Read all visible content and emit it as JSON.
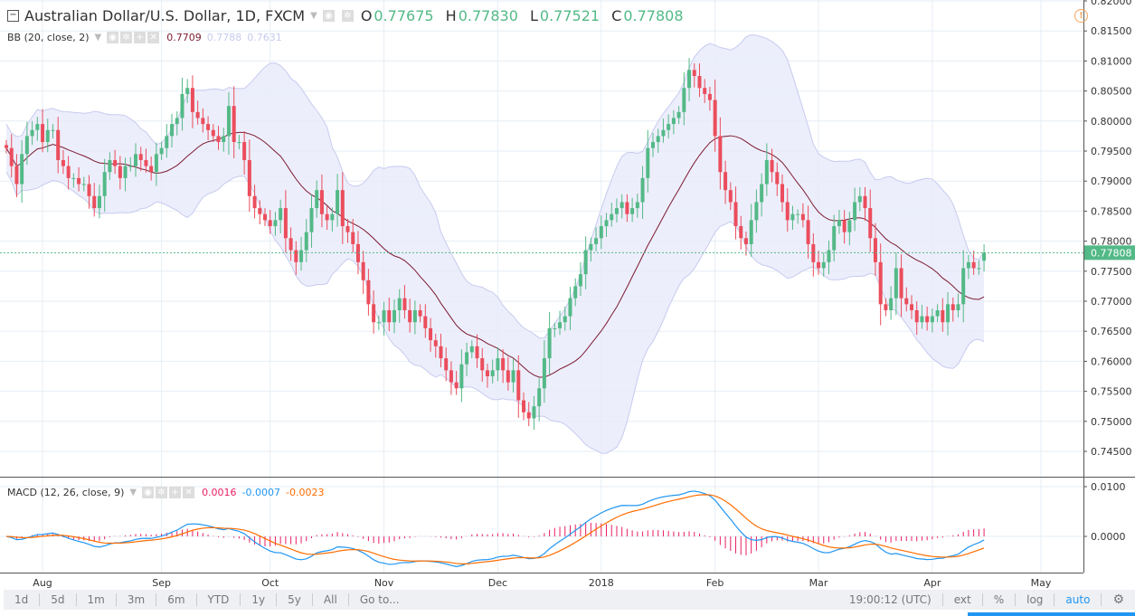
{
  "header": {
    "symbol": "Australian Dollar/U.S. Dollar, 1D, FXCM",
    "o_label": "O",
    "o": "0.77675",
    "h_label": "H",
    "h": "0.77830",
    "l_label": "L",
    "l": "0.77521",
    "c_label": "C",
    "c": "0.77808"
  },
  "bb": {
    "label": "BB (20, close, 2)",
    "basis": "0.7709",
    "upper": "0.7788",
    "lower": "0.7631"
  },
  "macd": {
    "label": "MACD (12, 26, close, 9)",
    "hist": "0.0016",
    "macd": "-0.0007",
    "signal": "-0.0023"
  },
  "toolbar": {
    "ranges": [
      "1d",
      "5d",
      "1m",
      "3m",
      "6m",
      "YTD",
      "1y",
      "5y",
      "All",
      "Go to..."
    ],
    "time": "19:00:12 (UTC)",
    "ext": "ext",
    "percent": "%",
    "log": "log",
    "auto": "auto"
  },
  "colors": {
    "up": "#53b987",
    "down": "#eb4d5c",
    "bb_fill": "#e8eafa",
    "bb_band": "#c6cbef",
    "basis": "#7b1b30",
    "macd": "#2196f3",
    "signal": "#ff6d00",
    "hist": "#e91e63",
    "last": "#53b987",
    "warning": "#f7a35c"
  },
  "chart_data": {
    "type": "candlestick",
    "x_range": [
      "2017-07-21",
      "2018-04-16"
    ],
    "x_ticks": [
      "Aug",
      "Sep",
      "Oct",
      "Nov",
      "Dec",
      "2018",
      "Feb",
      "Mar",
      "Apr",
      "May"
    ],
    "y_ticks": [
      "0.82000",
      "0.81500",
      "0.81000",
      "0.80500",
      "0.80000",
      "0.79500",
      "0.79000",
      "0.78500",
      "0.78000",
      "0.77500",
      "0.77000",
      "0.76500",
      "0.76000",
      "0.75500",
      "0.75000",
      "0.74500"
    ],
    "ylim": [
      0.7425,
      0.82
    ],
    "last_price": "0.77808",
    "macd_ticks": [
      "0.0100",
      "0.0000"
    ],
    "macd_ylim": [
      -0.008,
      0.011
    ],
    "closes": [
      0.7955,
      0.7925,
      0.7895,
      0.7945,
      0.7975,
      0.7985,
      0.7995,
      0.7965,
      0.7985,
      0.7985,
      0.7935,
      0.7925,
      0.7905,
      0.7905,
      0.7895,
      0.7895,
      0.7875,
      0.7855,
      0.7875,
      0.7915,
      0.7935,
      0.7925,
      0.7905,
      0.7925,
      0.7925,
      0.7945,
      0.7935,
      0.7925,
      0.7915,
      0.7945,
      0.7955,
      0.7975,
      0.7995,
      0.8005,
      0.8045,
      0.8055,
      0.8015,
      0.8005,
      0.7995,
      0.7985,
      0.7975,
      0.7965,
      0.7975,
      0.8025,
      0.7965,
      0.7965,
      0.7935,
      0.7875,
      0.7855,
      0.7845,
      0.7835,
      0.7825,
      0.7835,
      0.7855,
      0.7805,
      0.7785,
      0.7765,
      0.7785,
      0.7815,
      0.7855,
      0.7885,
      0.7845,
      0.7835,
      0.7845,
      0.7885,
      0.7825,
      0.7815,
      0.7795,
      0.7765,
      0.7735,
      0.7695,
      0.7665,
      0.7665,
      0.7685,
      0.7665,
      0.7685,
      0.7705,
      0.7685,
      0.7665,
      0.7685,
      0.7675,
      0.7655,
      0.7635,
      0.7625,
      0.7605,
      0.7585,
      0.7565,
      0.7555,
      0.7595,
      0.7615,
      0.7625,
      0.7605,
      0.7585,
      0.7575,
      0.7585,
      0.7605,
      0.7585,
      0.7565,
      0.7585,
      0.7535,
      0.7515,
      0.7505,
      0.7525,
      0.7555,
      0.7605,
      0.7655,
      0.7655,
      0.7665,
      0.7675,
      0.7705,
      0.7725,
      0.7745,
      0.7785,
      0.7795,
      0.7805,
      0.7825,
      0.7835,
      0.7845,
      0.7855,
      0.7865,
      0.7845,
      0.7855,
      0.7865,
      0.7905,
      0.7955,
      0.7965,
      0.7975,
      0.7985,
      0.7995,
      0.8005,
      0.8015,
      0.8055,
      0.8085,
      0.8075,
      0.8055,
      0.8045,
      0.8035,
      0.7975,
      0.7915,
      0.7885,
      0.7865,
      0.7825,
      0.7805,
      0.7795,
      0.7835,
      0.7865,
      0.7895,
      0.7935,
      0.7915,
      0.7895,
      0.7865,
      0.7835,
      0.7845,
      0.7845,
      0.7835,
      0.7795,
      0.7765,
      0.7755,
      0.7765,
      0.7785,
      0.7825,
      0.7835,
      0.7815,
      0.7835,
      0.7865,
      0.7875,
      0.7855,
      0.7805,
      0.7765,
      0.7695,
      0.7685,
      0.7705,
      0.7755,
      0.7705,
      0.7695,
      0.7685,
      0.7665,
      0.7675,
      0.7665,
      0.7675,
      0.7685,
      0.7665,
      0.7695,
      0.7685,
      0.7695,
      0.7755,
      0.7765,
      0.7755,
      0.7755,
      0.77808
    ]
  }
}
